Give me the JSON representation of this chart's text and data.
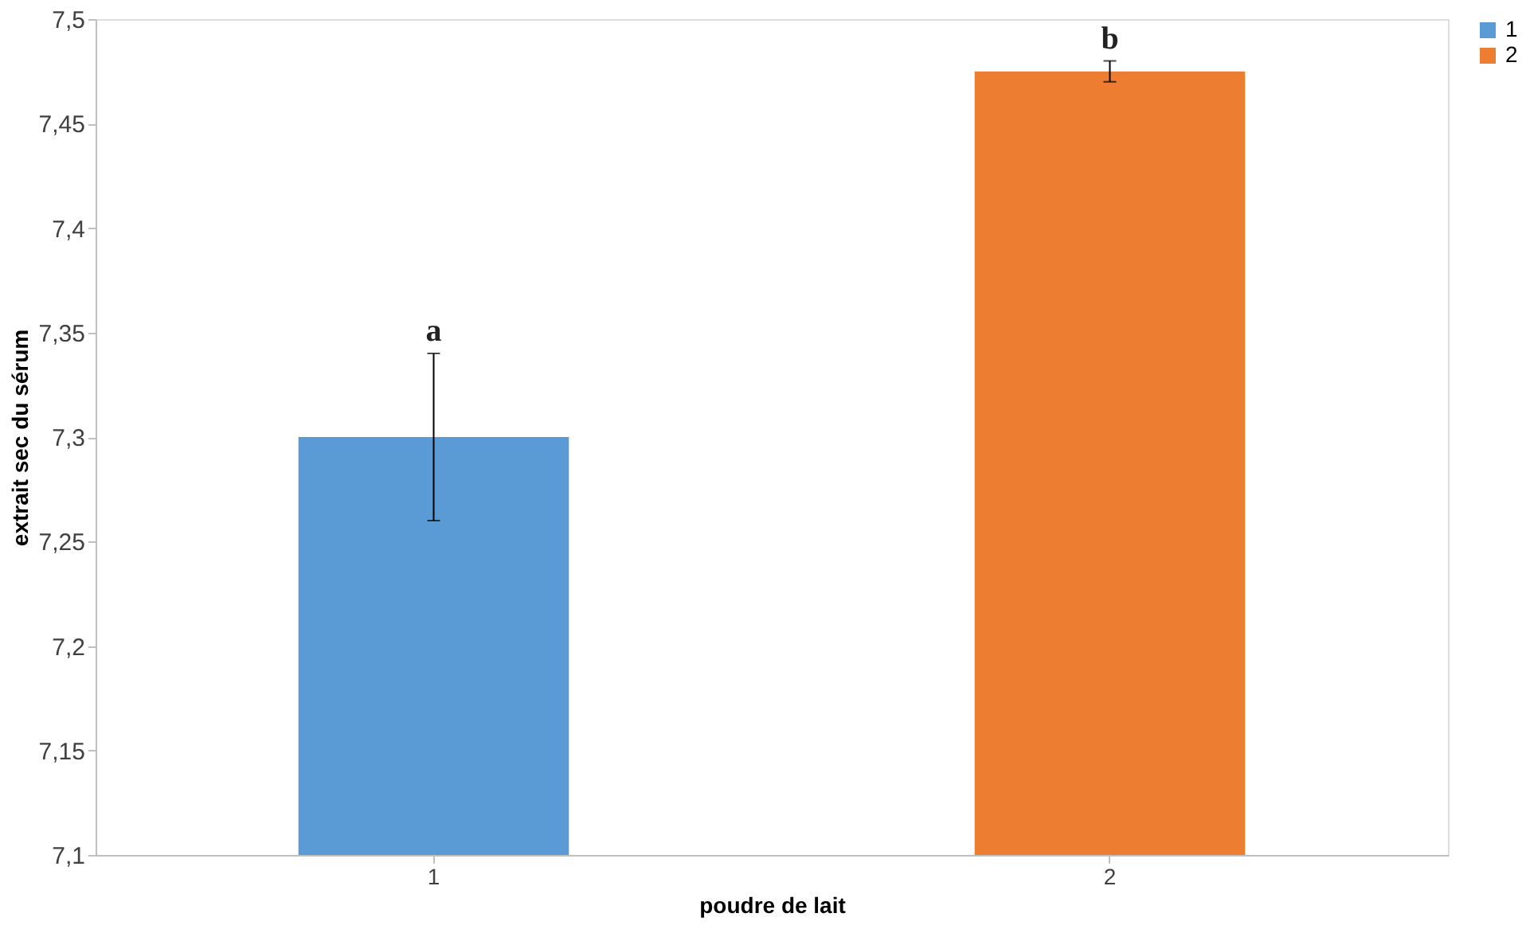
{
  "chart_data": {
    "type": "bar",
    "xlabel": "poudre de lait",
    "ylabel": "extrait sec du sérum",
    "categories": [
      "1",
      "2"
    ],
    "series": [
      {
        "name": "1",
        "color": "#5b9bd5",
        "values": [
          7.3,
          null
        ],
        "errors": [
          0.04,
          null
        ]
      },
      {
        "name": "2",
        "color": "#ed7d31",
        "values": [
          null,
          7.475
        ],
        "errors": [
          null,
          0.005
        ]
      }
    ],
    "ylim": [
      7.1,
      7.5
    ],
    "yticks": [
      {
        "value": 7.1,
        "label": "7,1"
      },
      {
        "value": 7.15,
        "label": "7,15"
      },
      {
        "value": 7.2,
        "label": "7,2"
      },
      {
        "value": 7.25,
        "label": "7,25"
      },
      {
        "value": 7.3,
        "label": "7,3"
      },
      {
        "value": 7.35,
        "label": "7,35"
      },
      {
        "value": 7.4,
        "label": "7,4"
      },
      {
        "value": 7.45,
        "label": "7,45"
      },
      {
        "value": 7.5,
        "label": "7,5"
      }
    ],
    "annotations": [
      "a",
      "b"
    ],
    "grid": false,
    "legend": "right"
  }
}
